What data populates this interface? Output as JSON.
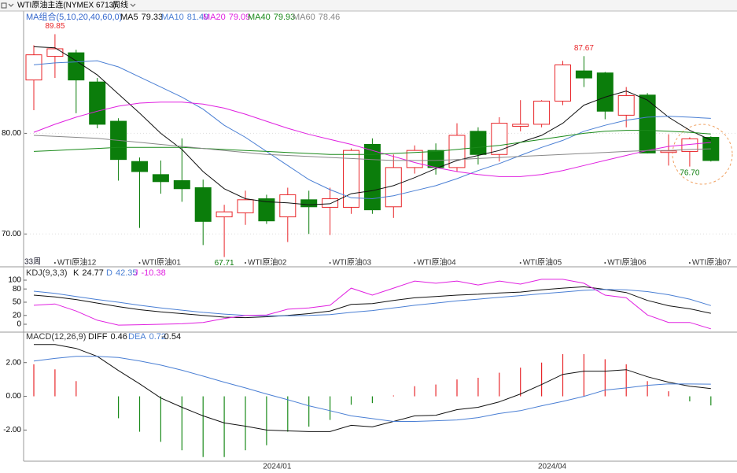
{
  "header": {
    "instrument": "WTI原油主连(NYMEX 6713)",
    "period": "周线"
  },
  "chart_data": [
    {
      "type": "candlestick",
      "indicator": "MA组合(5,10,20,40,60,0)",
      "period_label": "33周",
      "categories": [
        null,
        "WTI原油12",
        null,
        null,
        null,
        "WTI原油01",
        null,
        null,
        null,
        null,
        "WTI原油02",
        null,
        null,
        null,
        "WTI原油03",
        null,
        null,
        null,
        "WTI原油04",
        null,
        null,
        null,
        null,
        "WTI原油05",
        null,
        null,
        null,
        "WTI原油06",
        null,
        null,
        null,
        "WTI原油07",
        null
      ],
      "open": [
        85.3,
        87.65,
        88.0,
        85.1,
        81.2,
        77.2,
        75.9,
        75.3,
        74.6,
        71.7,
        72.1,
        73.5,
        71.7,
        73.4,
        72.65,
        72.65,
        78.9,
        72.7,
        76.6,
        78.3,
        76.6,
        80.2,
        77.9,
        80.7,
        80.9,
        83.2,
        86.2,
        86.0,
        81.8,
        83.8,
        78.1,
        78.2,
        79.6
      ],
      "close": [
        87.8,
        88.4,
        85.3,
        80.9,
        77.4,
        76.2,
        75.2,
        74.5,
        71.25,
        72.2,
        73.4,
        71.3,
        73.9,
        72.7,
        73.5,
        78.3,
        72.4,
        76.6,
        78.3,
        76.6,
        79.8,
        77.9,
        81.0,
        80.9,
        83.2,
        86.8,
        85.5,
        82.2,
        83.75,
        78.05,
        78.25,
        79.45,
        77.3
      ],
      "high": [
        88.75,
        89.85,
        88.3,
        85.5,
        81.5,
        77.6,
        77.3,
        79.5,
        75.4,
        72.9,
        74.3,
        73.9,
        74.6,
        74.3,
        74.6,
        78.5,
        79.5,
        77.9,
        78.8,
        79.0,
        81.0,
        80.6,
        81.6,
        83.3,
        83.3,
        87.2,
        87.67,
        86.1,
        84.6,
        84.0,
        79.9,
        79.6,
        79.7
      ],
      "low": [
        82.3,
        85.5,
        82.0,
        80.5,
        75.3,
        70.6,
        74.0,
        73.2,
        68.9,
        67.71,
        70.9,
        71.0,
        69.2,
        70.0,
        69.9,
        72.0,
        72.0,
        71.6,
        76.0,
        75.9,
        76.2,
        76.9,
        77.2,
        80.2,
        80.6,
        82.8,
        84.6,
        81.4,
        80.6,
        78.0,
        76.8,
        76.7,
        77.2
      ],
      "up_color": "#e8262a",
      "down_color": "#0b7d0b",
      "annotations": [
        {
          "value": 89.85,
          "label": "89.85"
        },
        {
          "value": 87.67,
          "label": "87.67"
        },
        {
          "value": 67.71,
          "label": "67.71"
        },
        {
          "value": 76.7,
          "label": "76.70"
        }
      ],
      "series": [
        {
          "name": "MA5",
          "color": "#111111",
          "values": [
            88.6,
            88.5,
            87.2,
            85.8,
            83.9,
            82.0,
            80.0,
            78.4,
            76.2,
            74.5,
            73.5,
            73.2,
            73.1,
            72.9,
            73.0,
            74.0,
            74.3,
            74.8,
            75.6,
            76.5,
            77.3,
            77.8,
            78.3,
            79.1,
            79.8,
            81.0,
            82.8,
            83.6,
            84.2,
            83.3,
            81.6,
            80.3,
            79.33
          ]
        },
        {
          "name": "MA10",
          "color": "#4a7fd4",
          "values": [
            86.8,
            87.0,
            87.1,
            87.2,
            86.6,
            85.6,
            84.6,
            83.6,
            82.4,
            80.8,
            79.6,
            78.2,
            76.8,
            75.4,
            74.4,
            73.6,
            73.5,
            73.8,
            74.3,
            74.8,
            75.5,
            76.3,
            77.0,
            77.8,
            78.6,
            79.3,
            80.2,
            80.8,
            81.3,
            81.6,
            81.7,
            81.6,
            81.49
          ]
        },
        {
          "name": "MA20",
          "color": "#e020e0",
          "values": [
            80.1,
            80.9,
            81.6,
            82.2,
            82.7,
            83.0,
            83.1,
            83.1,
            82.9,
            82.5,
            81.9,
            81.2,
            80.5,
            79.9,
            79.4,
            78.9,
            78.3,
            77.7,
            77.1,
            76.6,
            76.2,
            75.9,
            75.7,
            75.7,
            75.9,
            76.3,
            76.8,
            77.3,
            77.8,
            78.3,
            78.7,
            78.9,
            79.09
          ]
        },
        {
          "name": "MA40",
          "color": "#1a8a1a",
          "values": [
            78.2,
            78.3,
            78.4,
            78.5,
            78.6,
            78.6,
            78.6,
            78.6,
            78.5,
            78.4,
            78.3,
            78.2,
            78.1,
            78.0,
            77.9,
            77.9,
            77.9,
            78.0,
            78.1,
            78.2,
            78.4,
            78.6,
            78.8,
            79.1,
            79.4,
            79.7,
            80.0,
            80.2,
            80.3,
            80.3,
            80.2,
            80.1,
            79.93
          ]
        },
        {
          "name": "MA60",
          "color": "#888888",
          "values": [
            79.8,
            79.7,
            79.6,
            79.5,
            79.3,
            79.1,
            78.9,
            78.7,
            78.5,
            78.3,
            78.1,
            77.9,
            77.8,
            77.7,
            77.6,
            77.5,
            77.4,
            77.3,
            77.3,
            77.3,
            77.4,
            77.5,
            77.6,
            77.7,
            77.8,
            77.9,
            78.0,
            78.1,
            78.2,
            78.3,
            78.3,
            78.4,
            78.46
          ]
        }
      ],
      "ylim": [
        67.6,
        90.9
      ],
      "yticks": [
        {
          "value": 80,
          "label": "80.00"
        },
        {
          "value": 70,
          "label": "70.00"
        }
      ],
      "grid": true
    },
    {
      "type": "line",
      "indicator": "KDJ(9,3,3)",
      "series": [
        {
          "name": "K",
          "color": "#111111",
          "values": [
            66,
            62,
            56,
            48,
            40,
            33,
            28,
            24,
            20,
            16,
            15,
            17,
            20,
            24,
            30,
            45,
            47,
            54,
            60,
            63,
            66,
            68,
            71,
            73,
            78,
            82,
            85,
            79,
            72,
            54,
            42,
            35,
            24.77
          ]
        },
        {
          "name": "D",
          "color": "#4a7fd4",
          "values": [
            75,
            70,
            63,
            56,
            50,
            43,
            37,
            32,
            27,
            23,
            20,
            19,
            19,
            20,
            22,
            27,
            31,
            37,
            43,
            48,
            53,
            57,
            61,
            65,
            69,
            73,
            77,
            79,
            78,
            74,
            67,
            57,
            42.35
          ]
        },
        {
          "name": "J",
          "color": "#e020e0",
          "values": [
            43,
            46,
            30,
            9,
            -2,
            -1,
            0,
            1,
            4,
            13,
            20,
            21,
            34,
            37,
            43,
            82,
            66,
            82,
            98,
            93,
            98,
            89,
            98,
            91,
            102,
            102,
            93,
            66,
            60,
            21,
            4,
            4,
            -10.38
          ]
        }
      ],
      "ylim": [
        -14.3,
        107.1
      ],
      "yticks": [
        0,
        20,
        50,
        80,
        100
      ],
      "grid": false
    },
    {
      "type": "macd",
      "indicator": "MACD(12,26,9)",
      "categories": [
        null,
        null,
        null,
        null,
        null,
        null,
        null,
        null,
        null,
        null,
        null,
        "2024/01",
        null,
        null,
        null,
        null,
        null,
        null,
        null,
        null,
        null,
        null,
        null,
        null,
        "2024/04",
        null,
        null,
        null,
        null,
        null,
        null,
        null,
        null
      ],
      "bars": {
        "up_color": "#e8262a",
        "down_color": "#1a8a1a",
        "values": [
          1.9,
          1.6,
          0.9,
          0,
          -1.3,
          -2.1,
          -2.7,
          -3.2,
          -3.6,
          -3.6,
          -3.2,
          -2.9,
          -2.1,
          -1.8,
          -1.4,
          -0.5,
          -0.4,
          0.05,
          0.6,
          0.7,
          1.0,
          1.1,
          1.4,
          1.7,
          2.0,
          2.5,
          2.5,
          2.2,
          1.9,
          0.9,
          0.3,
          -0.3,
          -0.54
        ]
      },
      "series": [
        {
          "name": "DIFF",
          "color": "#111111",
          "values": [
            3.07,
            3.07,
            2.84,
            2.37,
            1.53,
            0.74,
            -0.1,
            -0.65,
            -1.16,
            -1.58,
            -1.77,
            -2.0,
            -2.05,
            -2.09,
            -2.09,
            -1.72,
            -1.81,
            -1.49,
            -1.16,
            -1.12,
            -0.79,
            -0.65,
            -0.33,
            0.14,
            0.7,
            1.3,
            1.49,
            1.49,
            1.58,
            1.16,
            0.84,
            0.6,
            0.46
          ]
        },
        {
          "name": "DEA",
          "color": "#4a7fd4",
          "values": [
            2.09,
            2.25,
            2.37,
            2.37,
            2.3,
            2.1,
            1.85,
            1.55,
            1.2,
            0.84,
            0.5,
            0.14,
            -0.2,
            -0.56,
            -0.85,
            -1.16,
            -1.32,
            -1.49,
            -1.49,
            -1.45,
            -1.4,
            -1.26,
            -1.02,
            -0.85,
            -0.56,
            -0.3,
            0,
            0.37,
            0.5,
            0.65,
            0.74,
            0.73,
            0.72
          ]
        }
      ],
      "ylim": [
        -3.8,
        3.2
      ],
      "yticks": [
        {
          "value": 2,
          "label": "2.00"
        },
        {
          "value": 0,
          "label": "0.00"
        },
        {
          "value": -2,
          "label": "-2.00"
        }
      ],
      "grid": false
    }
  ]
}
